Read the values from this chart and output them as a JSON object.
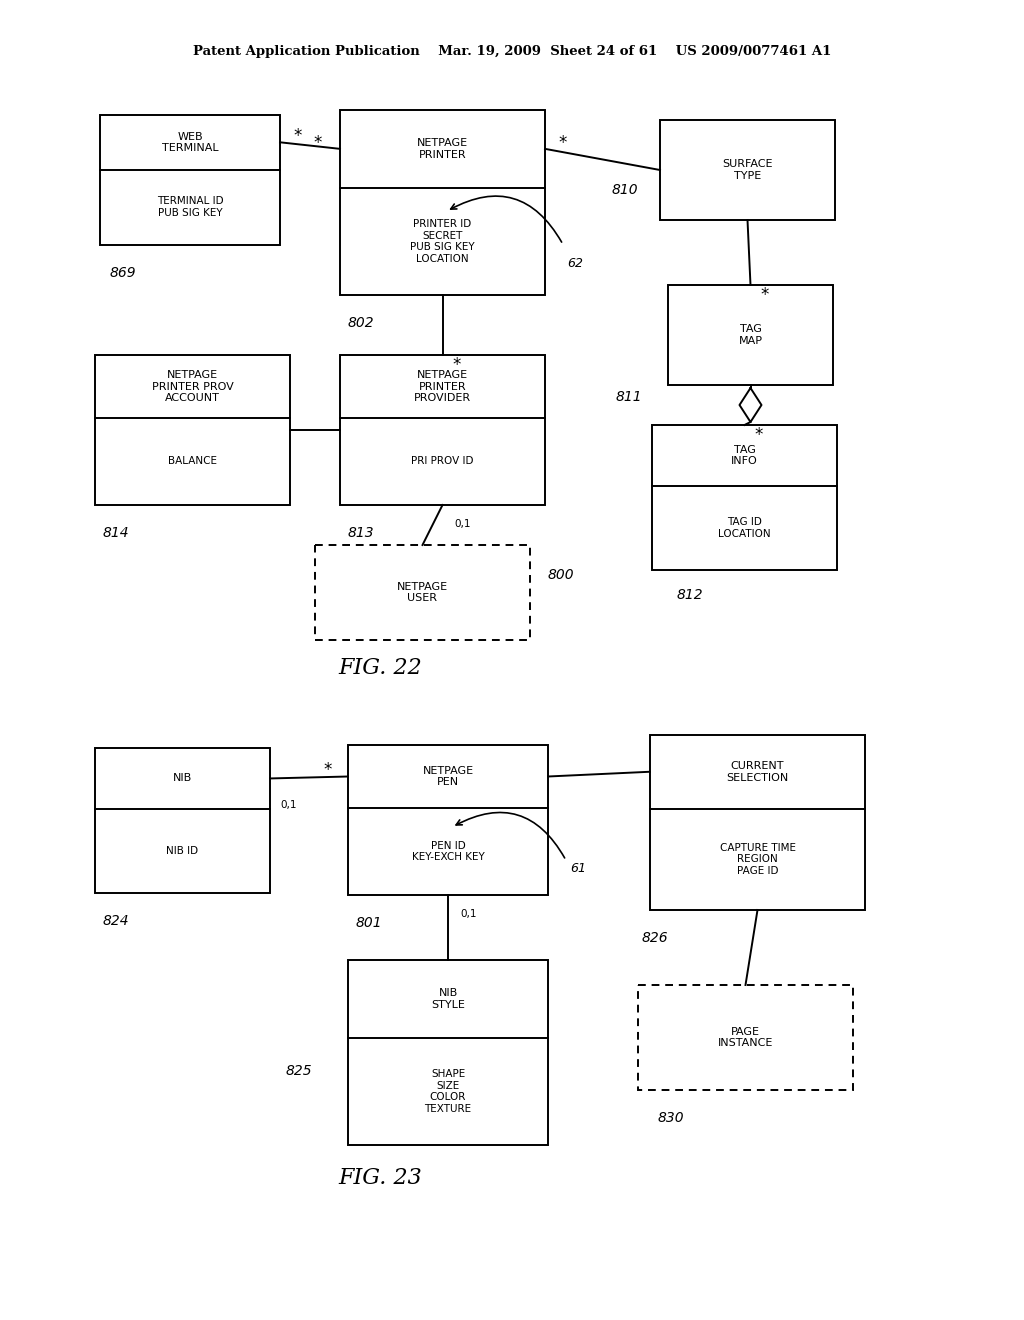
{
  "bg_color": "#ffffff",
  "fig22_caption": "FIG. 22",
  "fig23_caption": "FIG. 23",
  "header": "Patent Application Publication    Mar. 19, 2009  Sheet 24 of 61    US 2009/0077461 A1"
}
